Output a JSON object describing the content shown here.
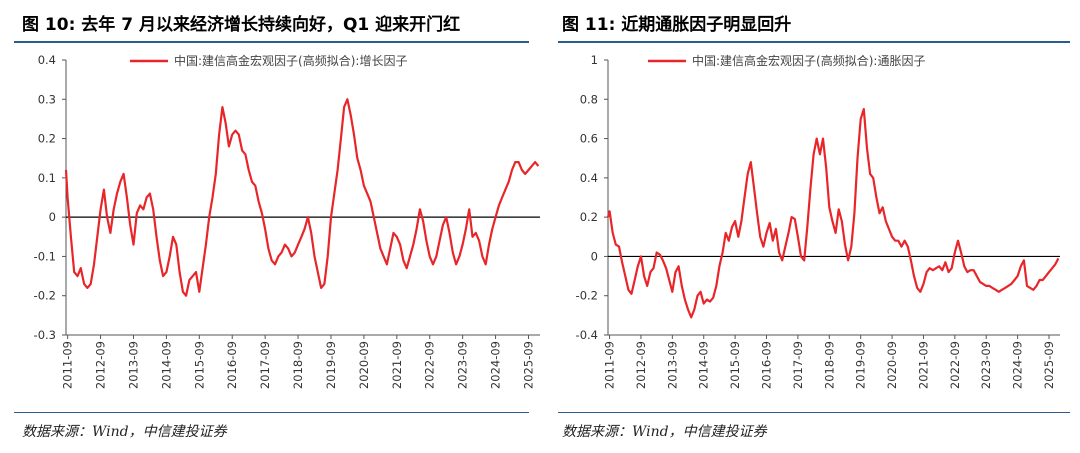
{
  "figures": [
    {
      "title": "图 10:  去年 7 月以来经济增长持续向好，Q1 迎来开门红",
      "source": "数据来源：Wind，中信建投证券"
    },
    {
      "title": "图 11:  近期通胀因子明显回升",
      "source": "数据来源：Wind，中信建投证券"
    }
  ],
  "chart_data": [
    {
      "type": "line",
      "legend": "中国:建信高金宏观因子(高频拟合):增长因子",
      "color": "#e8262a",
      "ylim": [
        -0.3,
        0.4
      ],
      "yticks": [
        "0.4",
        "0.3",
        "0.2",
        "0.1",
        "0",
        "-0.1",
        "-0.2",
        "-0.3"
      ],
      "ytick_values": [
        0.4,
        0.3,
        0.2,
        0.1,
        0,
        -0.1,
        -0.2,
        -0.3
      ],
      "xlim": [
        2011.7,
        2026.1
      ],
      "xticks": [
        "2011-09",
        "2012-09",
        "2013-09",
        "2014-09",
        "2015-09",
        "2016-09",
        "2017-09",
        "2018-09",
        "2019-09",
        "2020-09",
        "2021-09",
        "2022-09",
        "2023-09",
        "2024-09",
        "2025-09"
      ],
      "xtick_values": [
        2011.75,
        2012.75,
        2013.75,
        2014.75,
        2015.75,
        2016.75,
        2017.75,
        2018.75,
        2019.75,
        2020.75,
        2021.75,
        2022.75,
        2023.75,
        2024.75,
        2025.75
      ],
      "x": [
        2011.7,
        2011.75,
        2011.85,
        2011.95,
        2012.05,
        2012.15,
        2012.25,
        2012.35,
        2012.45,
        2012.55,
        2012.65,
        2012.75,
        2012.85,
        2012.95,
        2013.05,
        2013.15,
        2013.25,
        2013.35,
        2013.45,
        2013.55,
        2013.65,
        2013.75,
        2013.85,
        2013.95,
        2014.05,
        2014.15,
        2014.25,
        2014.35,
        2014.45,
        2014.55,
        2014.65,
        2014.75,
        2014.85,
        2014.95,
        2015.05,
        2015.15,
        2015.25,
        2015.35,
        2015.45,
        2015.55,
        2015.65,
        2015.75,
        2015.85,
        2015.95,
        2016.05,
        2016.15,
        2016.25,
        2016.35,
        2016.45,
        2016.55,
        2016.65,
        2016.75,
        2016.85,
        2016.95,
        2017.05,
        2017.15,
        2017.25,
        2017.35,
        2017.45,
        2017.55,
        2017.65,
        2017.75,
        2017.85,
        2017.95,
        2018.05,
        2018.15,
        2018.25,
        2018.35,
        2018.45,
        2018.55,
        2018.65,
        2018.75,
        2018.85,
        2018.95,
        2019.05,
        2019.15,
        2019.25,
        2019.35,
        2019.45,
        2019.55,
        2019.65,
        2019.75,
        2019.85,
        2019.95,
        2020.05,
        2020.15,
        2020.25,
        2020.35,
        2020.45,
        2020.55,
        2020.65,
        2020.75,
        2020.85,
        2020.95,
        2021.05,
        2021.15,
        2021.25,
        2021.35,
        2021.45,
        2021.55,
        2021.65,
        2021.75,
        2021.85,
        2021.95,
        2022.05,
        2022.15,
        2022.25,
        2022.35,
        2022.45,
        2022.55,
        2022.65,
        2022.75,
        2022.85,
        2022.95,
        2023.05,
        2023.15,
        2023.25,
        2023.35,
        2023.45,
        2023.55,
        2023.65,
        2023.75,
        2023.85,
        2023.95,
        2024.05,
        2024.15,
        2024.25,
        2024.35,
        2024.45,
        2024.55,
        2024.65,
        2024.75,
        2024.85,
        2024.95,
        2025.05,
        2025.15,
        2025.25,
        2025.35,
        2025.45,
        2025.55,
        2025.65,
        2025.75,
        2025.85,
        2025.95,
        2026.05
      ],
      "y": [
        0.12,
        0.05,
        -0.05,
        -0.14,
        -0.15,
        -0.13,
        -0.17,
        -0.18,
        -0.17,
        -0.12,
        -0.05,
        0.02,
        0.07,
        0.0,
        -0.04,
        0.02,
        0.06,
        0.09,
        0.11,
        0.05,
        -0.02,
        -0.07,
        0.01,
        0.03,
        0.02,
        0.05,
        0.06,
        0.02,
        -0.05,
        -0.11,
        -0.15,
        -0.14,
        -0.1,
        -0.05,
        -0.07,
        -0.14,
        -0.19,
        -0.2,
        -0.16,
        -0.15,
        -0.14,
        -0.19,
        -0.13,
        -0.07,
        0.0,
        0.05,
        0.11,
        0.21,
        0.28,
        0.24,
        0.18,
        0.21,
        0.22,
        0.21,
        0.17,
        0.16,
        0.12,
        0.09,
        0.08,
        0.04,
        0.01,
        -0.03,
        -0.08,
        -0.11,
        -0.12,
        -0.1,
        -0.09,
        -0.07,
        -0.08,
        -0.1,
        -0.09,
        -0.07,
        -0.05,
        -0.03,
        0.0,
        -0.04,
        -0.1,
        -0.14,
        -0.18,
        -0.17,
        -0.1,
        0.0,
        0.06,
        0.12,
        0.2,
        0.28,
        0.3,
        0.26,
        0.21,
        0.15,
        0.12,
        0.08,
        0.06,
        0.04,
        0.0,
        -0.04,
        -0.08,
        -0.1,
        -0.12,
        -0.08,
        -0.04,
        -0.05,
        -0.07,
        -0.11,
        -0.13,
        -0.1,
        -0.07,
        -0.03,
        0.02,
        -0.01,
        -0.06,
        -0.1,
        -0.12,
        -0.1,
        -0.06,
        -0.02,
        0.0,
        -0.04,
        -0.09,
        -0.12,
        -0.1,
        -0.07,
        -0.03,
        0.02,
        -0.05,
        -0.04,
        -0.06,
        -0.1,
        -0.12,
        -0.07,
        -0.03,
        0.0,
        0.03,
        0.05,
        0.07,
        0.09,
        0.12,
        0.14,
        0.14,
        0.12,
        0.11,
        0.12,
        0.13,
        0.14,
        0.13
      ]
    },
    {
      "type": "line",
      "legend": "中国:建信高金宏观因子(高频拟合):通胀因子",
      "color": "#e8262a",
      "ylim": [
        -0.4,
        1.0
      ],
      "yticks": [
        "1",
        "0.8",
        "0.6",
        "0.4",
        "0.2",
        "0",
        "-0.2",
        "-0.4"
      ],
      "ytick_values": [
        1,
        0.8,
        0.6,
        0.4,
        0.2,
        0,
        -0.2,
        -0.4
      ],
      "xlim": [
        2011.7,
        2026.1
      ],
      "xticks": [
        "2011-09",
        "2012-09",
        "2013-09",
        "2014-09",
        "2015-09",
        "2016-09",
        "2017-09",
        "2018-09",
        "2019-09",
        "2020-09",
        "2021-09",
        "2022-09",
        "2023-09",
        "2024-09",
        "2025-09"
      ],
      "xtick_values": [
        2011.75,
        2012.75,
        2013.75,
        2014.75,
        2015.75,
        2016.75,
        2017.75,
        2018.75,
        2019.75,
        2020.75,
        2021.75,
        2022.75,
        2023.75,
        2024.75,
        2025.75
      ],
      "x": [
        2011.7,
        2011.75,
        2011.85,
        2011.95,
        2012.05,
        2012.15,
        2012.25,
        2012.35,
        2012.45,
        2012.55,
        2012.65,
        2012.75,
        2012.85,
        2012.95,
        2013.05,
        2013.15,
        2013.25,
        2013.35,
        2013.45,
        2013.55,
        2013.65,
        2013.75,
        2013.85,
        2013.95,
        2014.05,
        2014.15,
        2014.25,
        2014.35,
        2014.45,
        2014.55,
        2014.65,
        2014.75,
        2014.85,
        2014.95,
        2015.05,
        2015.15,
        2015.25,
        2015.35,
        2015.45,
        2015.55,
        2015.65,
        2015.75,
        2015.85,
        2015.95,
        2016.05,
        2016.15,
        2016.25,
        2016.35,
        2016.45,
        2016.55,
        2016.65,
        2016.75,
        2016.85,
        2016.95,
        2017.05,
        2017.15,
        2017.25,
        2017.35,
        2017.45,
        2017.55,
        2017.65,
        2017.75,
        2017.85,
        2017.95,
        2018.05,
        2018.15,
        2018.25,
        2018.35,
        2018.45,
        2018.55,
        2018.65,
        2018.75,
        2018.85,
        2018.95,
        2019.05,
        2019.15,
        2019.25,
        2019.35,
        2019.45,
        2019.55,
        2019.65,
        2019.75,
        2019.85,
        2019.95,
        2020.05,
        2020.15,
        2020.25,
        2020.35,
        2020.45,
        2020.55,
        2020.65,
        2020.75,
        2020.85,
        2020.95,
        2021.05,
        2021.15,
        2021.25,
        2021.35,
        2021.45,
        2021.55,
        2021.65,
        2021.75,
        2021.85,
        2021.95,
        2022.05,
        2022.15,
        2022.25,
        2022.35,
        2022.45,
        2022.55,
        2022.65,
        2022.75,
        2022.85,
        2022.95,
        2023.05,
        2023.15,
        2023.25,
        2023.35,
        2023.45,
        2023.55,
        2023.65,
        2023.75,
        2023.85,
        2023.95,
        2024.05,
        2024.15,
        2024.25,
        2024.35,
        2024.45,
        2024.55,
        2024.65,
        2024.75,
        2024.85,
        2024.95,
        2025.05,
        2025.15,
        2025.25,
        2025.35,
        2025.45,
        2025.55,
        2025.65,
        2025.75,
        2025.85,
        2025.95,
        2026.05
      ],
      "y": [
        0.2,
        0.23,
        0.12,
        0.06,
        0.05,
        -0.03,
        -0.1,
        -0.17,
        -0.19,
        -0.12,
        -0.05,
        0.0,
        -0.1,
        -0.15,
        -0.08,
        -0.06,
        0.02,
        0.01,
        -0.02,
        -0.06,
        -0.12,
        -0.18,
        -0.08,
        -0.05,
        -0.15,
        -0.22,
        -0.27,
        -0.31,
        -0.27,
        -0.2,
        -0.18,
        -0.24,
        -0.22,
        -0.23,
        -0.21,
        -0.15,
        -0.05,
        0.02,
        0.12,
        0.08,
        0.15,
        0.18,
        0.1,
        0.18,
        0.3,
        0.42,
        0.48,
        0.35,
        0.22,
        0.1,
        0.05,
        0.12,
        0.17,
        0.08,
        0.14,
        0.02,
        -0.02,
        0.05,
        0.12,
        0.2,
        0.19,
        0.1,
        0.0,
        -0.02,
        0.15,
        0.35,
        0.52,
        0.6,
        0.52,
        0.6,
        0.45,
        0.25,
        0.18,
        0.12,
        0.24,
        0.18,
        0.06,
        -0.02,
        0.05,
        0.22,
        0.5,
        0.7,
        0.75,
        0.55,
        0.42,
        0.4,
        0.3,
        0.22,
        0.25,
        0.18,
        0.14,
        0.1,
        0.08,
        0.08,
        0.05,
        0.08,
        0.05,
        -0.02,
        -0.1,
        -0.16,
        -0.18,
        -0.14,
        -0.08,
        -0.06,
        -0.07,
        -0.06,
        -0.05,
        -0.07,
        -0.03,
        -0.08,
        -0.06,
        0.02,
        0.08,
        0.02,
        -0.05,
        -0.08,
        -0.07,
        -0.07,
        -0.1,
        -0.13,
        -0.14,
        -0.15,
        -0.15,
        -0.16,
        -0.17,
        -0.18,
        -0.17,
        -0.16,
        -0.15,
        -0.14,
        -0.12,
        -0.1,
        -0.05,
        -0.02,
        -0.15,
        -0.16,
        -0.17,
        -0.15,
        -0.12,
        -0.12,
        -0.1,
        -0.08,
        -0.06,
        -0.04,
        -0.01
      ]
    }
  ]
}
